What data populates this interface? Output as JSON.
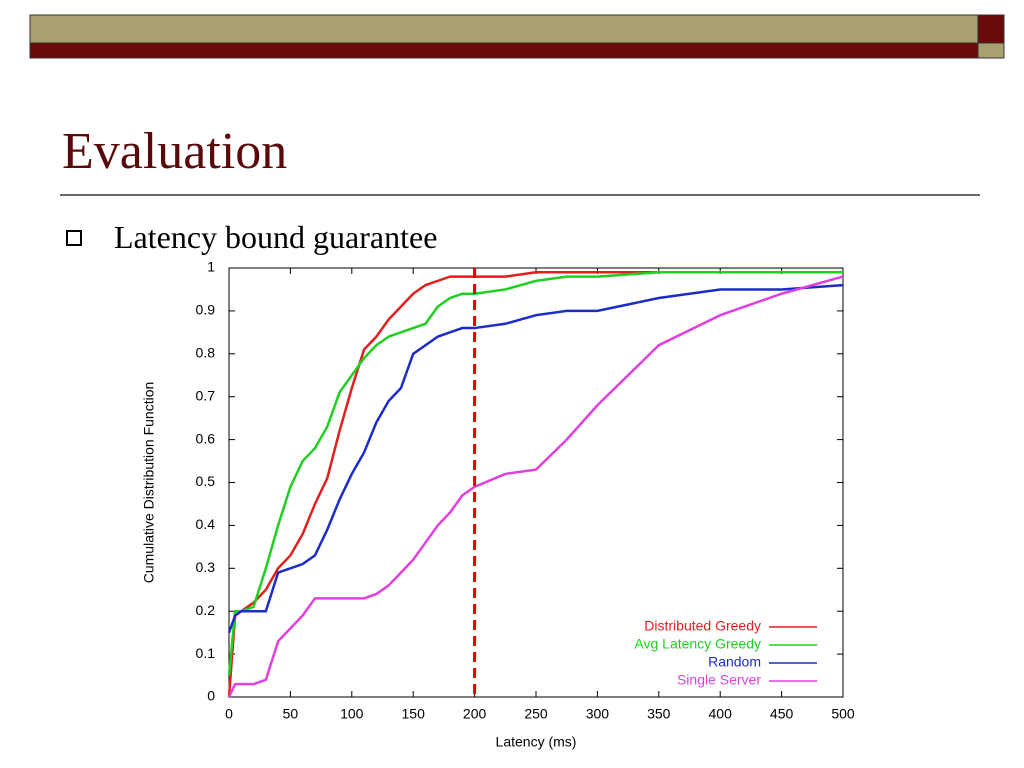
{
  "slide_title": "Evaluation",
  "bullet": "Latency bound guarantee",
  "chart_data": {
    "type": "line",
    "xlabel": "Latency (ms)",
    "ylabel": "Cumulative Distribution Function",
    "x": [
      0,
      5,
      10,
      20,
      30,
      40,
      50,
      60,
      70,
      80,
      90,
      100,
      110,
      120,
      130,
      140,
      150,
      160,
      170,
      180,
      190,
      200,
      225,
      250,
      275,
      300,
      350,
      400,
      450,
      500
    ],
    "series": [
      {
        "name": "Distributed Greedy",
        "color": "#e02020",
        "values": [
          0,
          0.19,
          0.2,
          0.22,
          0.25,
          0.3,
          0.33,
          0.38,
          0.45,
          0.51,
          0.62,
          0.72,
          0.81,
          0.84,
          0.88,
          0.91,
          0.94,
          0.96,
          0.97,
          0.98,
          0.98,
          0.98,
          0.98,
          0.99,
          0.99,
          0.99,
          0.99,
          0.99,
          0.99,
          0.99
        ]
      },
      {
        "name": "Avg Latency Greedy",
        "color": "#20d020",
        "values": [
          0.05,
          0.2,
          0.2,
          0.21,
          0.3,
          0.4,
          0.49,
          0.55,
          0.58,
          0.63,
          0.71,
          0.75,
          0.79,
          0.82,
          0.84,
          0.85,
          0.86,
          0.87,
          0.91,
          0.93,
          0.94,
          0.94,
          0.95,
          0.97,
          0.98,
          0.98,
          0.99,
          0.99,
          0.99,
          0.99
        ]
      },
      {
        "name": "Random",
        "color": "#1c2cc8",
        "values": [
          0.15,
          0.19,
          0.2,
          0.2,
          0.2,
          0.29,
          0.3,
          0.31,
          0.33,
          0.39,
          0.46,
          0.52,
          0.57,
          0.64,
          0.69,
          0.72,
          0.8,
          0.82,
          0.84,
          0.85,
          0.86,
          0.86,
          0.87,
          0.89,
          0.9,
          0.9,
          0.93,
          0.95,
          0.95,
          0.96
        ]
      },
      {
        "name": "Single Server",
        "color": "#e040e0",
        "values": [
          0,
          0.03,
          0.03,
          0.03,
          0.04,
          0.13,
          0.16,
          0.19,
          0.23,
          0.23,
          0.23,
          0.23,
          0.23,
          0.24,
          0.26,
          0.29,
          0.32,
          0.36,
          0.4,
          0.43,
          0.47,
          0.49,
          0.52,
          0.53,
          0.6,
          0.68,
          0.82,
          0.89,
          0.94,
          0.98
        ]
      }
    ],
    "reference_line": {
      "x": 200,
      "color": "#e00000"
    },
    "xlim": [
      0,
      500
    ],
    "xticks": [
      0,
      50,
      100,
      150,
      200,
      250,
      300,
      350,
      400,
      450,
      500
    ],
    "ylim": [
      0,
      1
    ],
    "yticks": [
      0,
      0.1,
      0.2,
      0.3,
      0.4,
      0.5,
      0.6,
      0.7,
      0.8,
      0.9,
      1
    ],
    "legend": "bottom-right"
  }
}
